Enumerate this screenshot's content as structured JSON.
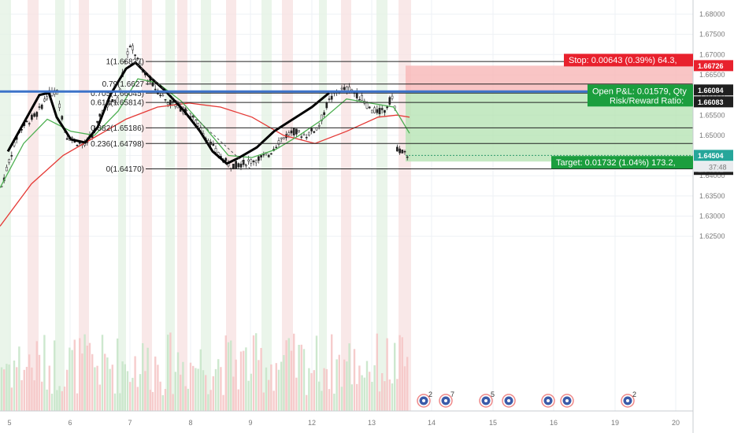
{
  "chart_data": {
    "type": "candlestick",
    "y_axis": {
      "ticks": [
        "1.68000",
        "1.67500",
        "1.67000",
        "1.66500",
        "1.66000",
        "1.65500",
        "1.65000",
        "1.64500",
        "1.64000",
        "1.63500",
        "1.63000",
        "1.62500"
      ],
      "min": 1.6225,
      "max": 1.6825
    },
    "x_axis": {
      "ticks": [
        "5",
        "6",
        "7",
        "8",
        "9",
        "12",
        "13",
        "14",
        "15",
        "16",
        "19",
        "20"
      ]
    },
    "fib_levels": [
      {
        "label": "1(1.66827)",
        "value": 1.66827
      },
      {
        "label": "0.79(1.6627",
        "value": 1.6627
      },
      {
        "label": "0.705(1.66045)",
        "value": 1.66045
      },
      {
        "label": "0.618(1.65814)",
        "value": 1.65814
      },
      {
        "label": "0.382(1.65186)",
        "value": 1.65186
      },
      {
        "label": "0.236(1.64798)",
        "value": 1.64798
      },
      {
        "label": "0(1.64170)",
        "value": 1.6417
      }
    ],
    "position": {
      "stop_label": "Stop: 0.00643 (0.39%) 64.3,",
      "open_pl_label": "Open P&L: 0.01579, Qty",
      "risk_reward_label": "Risk/Reward Ratio:",
      "target_label": "Target: 0.01732 (1.04%) 173.2,",
      "entry": 1.66083,
      "stop": 1.66726,
      "target": 1.64351
    },
    "horizontal_line_value": 1.66084,
    "current_price": 1.64504,
    "countdown": "37:48",
    "price_tags": [
      {
        "label": "1.66726",
        "value": 1.66726,
        "color": "#e8212d"
      },
      {
        "label": "1.66084",
        "value": 1.66084,
        "color": "#1f1f1f"
      },
      {
        "label": "1.66083",
        "value": 1.66083,
        "color": "#1f1f1f"
      },
      {
        "label": "1.64504",
        "value": 1.64504,
        "color": "#26a69a"
      },
      {
        "label": "1.64351",
        "value": 1.64351,
        "color": "#1f1f1f"
      }
    ],
    "events": [
      {
        "label": "2"
      },
      {
        "label": "7"
      },
      {
        "label": "5"
      },
      {
        "label": ""
      },
      {
        "label": ""
      },
      {
        "label": ""
      },
      {
        "label": "2"
      }
    ],
    "colors": {
      "up": "#26a69a",
      "down": "#ef5350",
      "ma_green": "#4caf50",
      "ma_red": "#e53935",
      "ma_black": "#000000",
      "hline_blue": "#3d73c9",
      "stop_zone": "#f7b7b7",
      "target_zone": "#b6e3b4"
    }
  }
}
